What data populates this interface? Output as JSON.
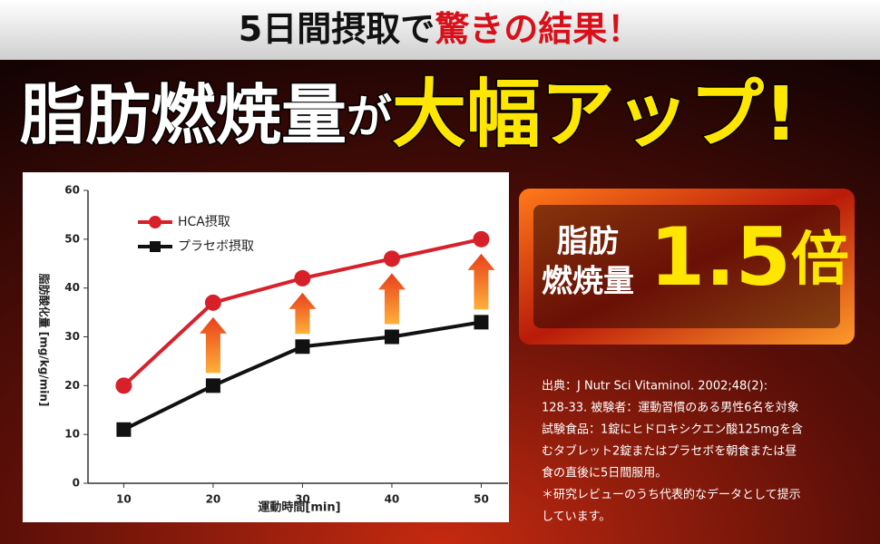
{
  "banner": {
    "lead": "5日間摂取で",
    "highlight": "驚きの結果！"
  },
  "headline": {
    "subject": "脂肪燃焼量",
    "particle": "が",
    "emphasis": "大幅アップ!"
  },
  "badge": {
    "label_lines": [
      "脂肪",
      "燃焼量"
    ],
    "number": "1.5",
    "unit": "倍"
  },
  "citation": [
    "出典：J Nutr Sci Vitaminol. 2002;48(2):",
    "128-33. 被験者：運動習慣のある男性6名を対象",
    "試験食品：1錠にヒドロキシクエン酸125mgを含",
    "むタブレット2錠またはプラセボを朝食または昼",
    "食の直後に5日間服用。",
    "＊研究レビューのうち代表的なデータとして提示",
    "しています。"
  ],
  "chart_data": {
    "type": "line",
    "x_label": "運動時間[min]",
    "y_label": "脂肪酸化量 [mg/kg/min]",
    "x": [
      10,
      20,
      30,
      40,
      50
    ],
    "xlim": [
      6,
      53
    ],
    "xticks": [
      10,
      20,
      30,
      40,
      50
    ],
    "ylim": [
      0,
      60
    ],
    "yticks": [
      0,
      10,
      20,
      30,
      40,
      50,
      60
    ],
    "series": [
      {
        "name": "HCA摂取",
        "color": "#d8202a",
        "marker": "circle",
        "values": [
          20,
          37,
          42,
          46,
          50
        ]
      },
      {
        "name": "プラセボ摂取",
        "color": "#111111",
        "marker": "square",
        "values": [
          11,
          20,
          28,
          30,
          33
        ]
      }
    ]
  }
}
